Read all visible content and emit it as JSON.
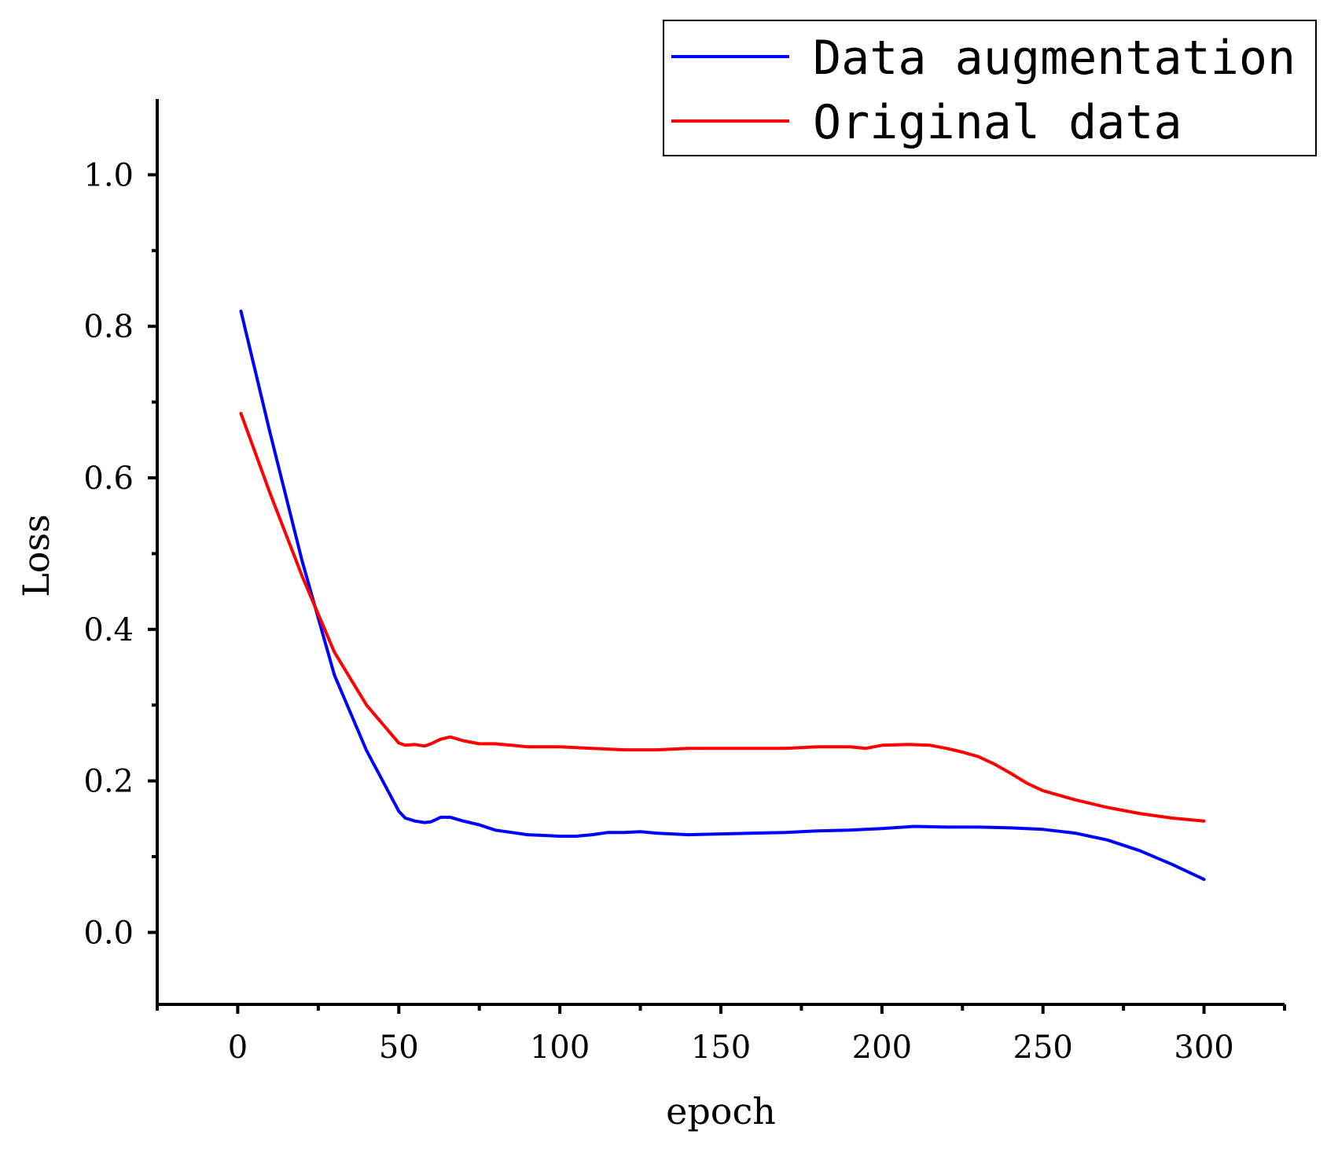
{
  "chart_data": {
    "type": "line",
    "title": "",
    "xlabel": "epoch",
    "ylabel": "Loss",
    "xlim": [
      -25,
      325
    ],
    "ylim": [
      -0.095,
      1.1
    ],
    "xticks": [
      0,
      50,
      100,
      150,
      200,
      250,
      300
    ],
    "xtick_labels": [
      "0",
      "50",
      "100",
      "150",
      "200",
      "250",
      "300"
    ],
    "yticks": [
      0.0,
      0.2,
      0.4,
      0.6,
      0.8,
      1.0
    ],
    "ytick_labels": [
      "0.0",
      "0.2",
      "0.4",
      "0.6",
      "0.8",
      "1.0"
    ],
    "grid": false,
    "legend_position": "top-right",
    "series": [
      {
        "name": "Data augmentation",
        "color": "#0000ff",
        "x": [
          1,
          10,
          20,
          30,
          40,
          50,
          52,
          55,
          58,
          60,
          63,
          66,
          70,
          75,
          80,
          85,
          90,
          95,
          100,
          105,
          110,
          115,
          120,
          125,
          130,
          135,
          140,
          150,
          160,
          170,
          180,
          190,
          200,
          210,
          220,
          230,
          240,
          250,
          260,
          270,
          280,
          290,
          300
        ],
        "y": [
          0.82,
          0.66,
          0.49,
          0.34,
          0.24,
          0.16,
          0.151,
          0.147,
          0.145,
          0.146,
          0.152,
          0.152,
          0.147,
          0.142,
          0.135,
          0.132,
          0.129,
          0.128,
          0.127,
          0.127,
          0.129,
          0.132,
          0.132,
          0.133,
          0.131,
          0.13,
          0.129,
          0.13,
          0.131,
          0.132,
          0.134,
          0.135,
          0.137,
          0.14,
          0.139,
          0.139,
          0.138,
          0.136,
          0.131,
          0.122,
          0.108,
          0.09,
          0.07
        ]
      },
      {
        "name": "Original data",
        "color": "#ff0000",
        "x": [
          1,
          10,
          20,
          30,
          40,
          50,
          52,
          55,
          58,
          60,
          63,
          66,
          70,
          75,
          80,
          85,
          90,
          100,
          110,
          120,
          130,
          140,
          150,
          160,
          170,
          180,
          190,
          195,
          200,
          208,
          215,
          220,
          225,
          230,
          235,
          240,
          245,
          250,
          260,
          270,
          280,
          290,
          300
        ],
        "y": [
          0.685,
          0.58,
          0.47,
          0.37,
          0.3,
          0.25,
          0.247,
          0.248,
          0.246,
          0.249,
          0.255,
          0.258,
          0.253,
          0.249,
          0.249,
          0.247,
          0.245,
          0.245,
          0.243,
          0.241,
          0.241,
          0.243,
          0.243,
          0.243,
          0.243,
          0.245,
          0.245,
          0.243,
          0.247,
          0.248,
          0.247,
          0.243,
          0.238,
          0.232,
          0.222,
          0.21,
          0.197,
          0.187,
          0.175,
          0.165,
          0.157,
          0.151,
          0.147
        ]
      }
    ]
  }
}
